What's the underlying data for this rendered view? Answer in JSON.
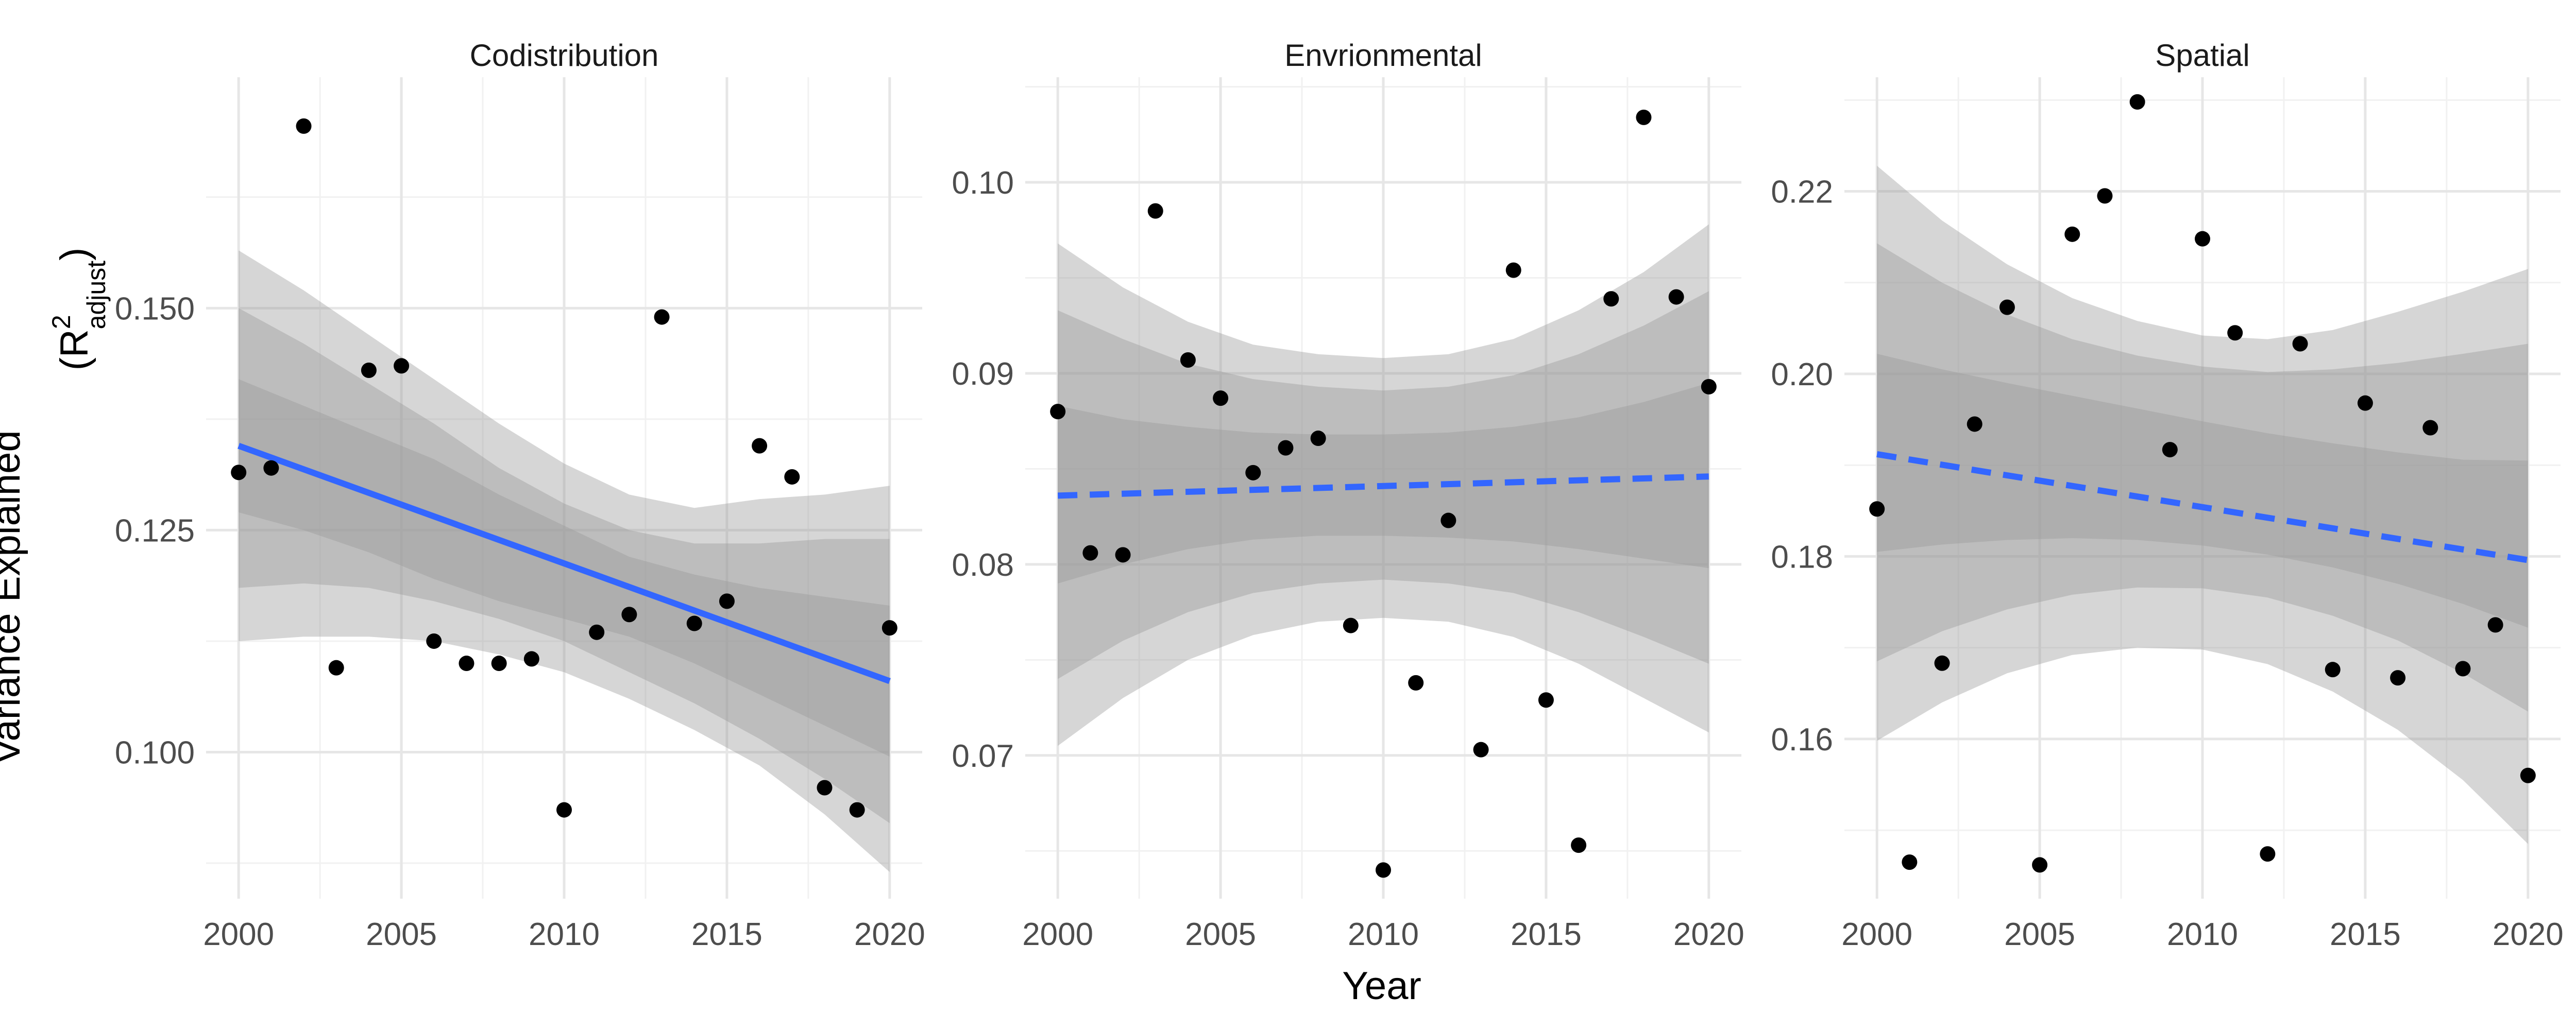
{
  "chart_data": {
    "type": "scatter",
    "xlabel": "Year",
    "ylabel": {
      "main": "Variance Explained",
      "r": "(R",
      "sup": "2",
      "sub": "adjust",
      "close": ")"
    },
    "colors": {
      "points": "#000000",
      "trend": "#3366ff",
      "band": "#999999"
    },
    "grid": true,
    "panels": [
      {
        "title": "Codistribution",
        "xlim": [
          1999,
          2021
        ],
        "ylim": [
          0.0835,
          0.176
        ],
        "x_ticks": [
          2000,
          2005,
          2010,
          2015,
          2020
        ],
        "y_ticks": [
          0.1,
          0.125,
          0.15
        ],
        "y_tick_labels": [
          "0.100",
          "0.125",
          "0.150"
        ],
        "trend": {
          "style": "solid",
          "x": [
            2000,
            2020
          ],
          "y": [
            0.1345,
            0.108
          ]
        },
        "bands": [
          {
            "x": [
              2000,
              2002,
              2004,
              2006,
              2008,
              2010,
              2012,
              2014,
              2016,
              2018,
              2020
            ],
            "lower": [
              0.1125,
              0.113,
              0.113,
              0.1125,
              0.111,
              0.109,
              0.106,
              0.1025,
              0.0985,
              0.093,
              0.0865
            ],
            "upper": [
              0.1565,
              0.152,
              0.147,
              0.142,
              0.137,
              0.1325,
              0.129,
              0.1275,
              0.1285,
              0.129,
              0.13
            ]
          },
          {
            "x": [
              2000,
              2002,
              2004,
              2006,
              2008,
              2010,
              2012,
              2014,
              2016,
              2018,
              2020
            ],
            "lower": [
              0.1185,
              0.119,
              0.1185,
              0.117,
              0.115,
              0.1125,
              0.109,
              0.1055,
              0.1015,
              0.097,
              0.092
            ],
            "upper": [
              0.15,
              0.146,
              0.1415,
              0.137,
              0.132,
              0.128,
              0.125,
              0.1235,
              0.1235,
              0.124,
              0.124
            ]
          },
          {
            "x": [
              2000,
              2002,
              2004,
              2006,
              2008,
              2010,
              2012,
              2014,
              2016,
              2018,
              2020
            ],
            "lower": [
              0.127,
              0.125,
              0.1225,
              0.1195,
              0.117,
              0.115,
              0.113,
              0.11,
              0.1065,
              0.103,
              0.0995
            ],
            "upper": [
              0.142,
              0.139,
              0.136,
              0.133,
              0.129,
              0.1255,
              0.122,
              0.12,
              0.1185,
              0.1175,
              0.1165
            ]
          }
        ],
        "points": [
          {
            "x": 2000,
            "y": 0.1315
          },
          {
            "x": 2001,
            "y": 0.132
          },
          {
            "x": 2002,
            "y": 0.1705
          },
          {
            "x": 2003,
            "y": 0.1095
          },
          {
            "x": 2004,
            "y": 0.143
          },
          {
            "x": 2005,
            "y": 0.1435
          },
          {
            "x": 2006,
            "y": 0.1125
          },
          {
            "x": 2007,
            "y": 0.11
          },
          {
            "x": 2008,
            "y": 0.11
          },
          {
            "x": 2009,
            "y": 0.1105
          },
          {
            "x": 2010,
            "y": 0.0935
          },
          {
            "x": 2011,
            "y": 0.1135
          },
          {
            "x": 2012,
            "y": 0.1155
          },
          {
            "x": 2013,
            "y": 0.149
          },
          {
            "x": 2014,
            "y": 0.1145
          },
          {
            "x": 2015,
            "y": 0.117
          },
          {
            "x": 2016,
            "y": 0.1345
          },
          {
            "x": 2017,
            "y": 0.131
          },
          {
            "x": 2018,
            "y": 0.096
          },
          {
            "x": 2019,
            "y": 0.0935
          },
          {
            "x": 2020,
            "y": 0.114
          }
        ]
      },
      {
        "title": "Envrionmental",
        "xlim": [
          1999,
          2021
        ],
        "ylim": [
          0.0625,
          0.1055
        ],
        "x_ticks": [
          2000,
          2005,
          2010,
          2015,
          2020
        ],
        "y_ticks": [
          0.07,
          0.08,
          0.09,
          0.1
        ],
        "y_tick_labels": [
          "0.07",
          "0.08",
          "0.09",
          "0.10"
        ],
        "trend": {
          "style": "dashed",
          "x": [
            2000,
            2020
          ],
          "y": [
            0.0836,
            0.0846
          ]
        },
        "bands": [
          {
            "x": [
              2000,
              2002,
              2004,
              2006,
              2008,
              2010,
              2012,
              2014,
              2016,
              2018,
              2020
            ],
            "lower": [
              0.0705,
              0.073,
              0.075,
              0.0763,
              0.077,
              0.0772,
              0.077,
              0.0762,
              0.0748,
              0.073,
              0.0712
            ],
            "upper": [
              0.0968,
              0.0945,
              0.0927,
              0.0915,
              0.091,
              0.0908,
              0.091,
              0.0918,
              0.0933,
              0.0953,
              0.0978
            ]
          },
          {
            "x": [
              2000,
              2002,
              2004,
              2006,
              2008,
              2010,
              2012,
              2014,
              2016,
              2018,
              2020
            ],
            "lower": [
              0.074,
              0.076,
              0.0775,
              0.0785,
              0.079,
              0.0792,
              0.079,
              0.0785,
              0.0775,
              0.0762,
              0.0748
            ],
            "upper": [
              0.0933,
              0.0918,
              0.0905,
              0.0897,
              0.0893,
              0.0891,
              0.0893,
              0.0899,
              0.091,
              0.0925,
              0.0943
            ]
          },
          {
            "x": [
              2000,
              2002,
              2004,
              2006,
              2008,
              2010,
              2012,
              2014,
              2016,
              2018,
              2020
            ],
            "lower": [
              0.079,
              0.08,
              0.0808,
              0.0813,
              0.0815,
              0.0815,
              0.0814,
              0.0812,
              0.0808,
              0.0803,
              0.0798
            ],
            "upper": [
              0.0883,
              0.0876,
              0.0872,
              0.0869,
              0.0868,
              0.0868,
              0.0869,
              0.0872,
              0.0877,
              0.0885,
              0.0895
            ]
          }
        ],
        "points": [
          {
            "x": 2000,
            "y": 0.088
          },
          {
            "x": 2001,
            "y": 0.0806
          },
          {
            "x": 2002,
            "y": 0.0805
          },
          {
            "x": 2003,
            "y": 0.0985
          },
          {
            "x": 2004,
            "y": 0.0907
          },
          {
            "x": 2005,
            "y": 0.0887
          },
          {
            "x": 2006,
            "y": 0.0848
          },
          {
            "x": 2007,
            "y": 0.0861
          },
          {
            "x": 2008,
            "y": 0.0866
          },
          {
            "x": 2009,
            "y": 0.0768
          },
          {
            "x": 2010,
            "y": 0.064
          },
          {
            "x": 2011,
            "y": 0.0738
          },
          {
            "x": 2012,
            "y": 0.0823
          },
          {
            "x": 2013,
            "y": 0.0703
          },
          {
            "x": 2014,
            "y": 0.0954
          },
          {
            "x": 2015,
            "y": 0.0729
          },
          {
            "x": 2016,
            "y": 0.0653
          },
          {
            "x": 2017,
            "y": 0.0939
          },
          {
            "x": 2018,
            "y": 0.1034
          },
          {
            "x": 2019,
            "y": 0.094
          },
          {
            "x": 2020,
            "y": 0.0893
          }
        ]
      },
      {
        "title": "Spatial",
        "xlim": [
          1999,
          2021
        ],
        "ylim": [
          0.1425,
          0.2325
        ],
        "x_ticks": [
          2000,
          2005,
          2010,
          2015,
          2020
        ],
        "y_ticks": [
          0.16,
          0.18,
          0.2,
          0.22
        ],
        "y_tick_labels": [
          "0.16",
          "0.18",
          "0.20",
          "0.22"
        ],
        "trend": {
          "style": "dashed",
          "x": [
            2000,
            2020
          ],
          "y": [
            0.1912,
            0.1796
          ]
        },
        "bands": [
          {
            "x": [
              2000,
              2002,
              2004,
              2006,
              2008,
              2010,
              2012,
              2014,
              2016,
              2018,
              2020
            ],
            "lower": [
              0.1598,
              0.164,
              0.1672,
              0.1692,
              0.17,
              0.1698,
              0.1682,
              0.1652,
              0.161,
              0.1555,
              0.1485
            ],
            "upper": [
              0.2228,
              0.2168,
              0.212,
              0.2083,
              0.2058,
              0.2042,
              0.2038,
              0.2048,
              0.2068,
              0.209,
              0.2115
            ]
          },
          {
            "x": [
              2000,
              2002,
              2004,
              2006,
              2008,
              2010,
              2012,
              2014,
              2016,
              2018,
              2020
            ],
            "lower": [
              0.1685,
              0.1718,
              0.1742,
              0.1758,
              0.1766,
              0.1765,
              0.1755,
              0.1735,
              0.1708,
              0.1672,
              0.163
            ],
            "upper": [
              0.2143,
              0.21,
              0.2065,
              0.2038,
              0.202,
              0.2008,
              0.2002,
              0.2005,
              0.2012,
              0.2022,
              0.2033
            ]
          },
          {
            "x": [
              2000,
              2002,
              2004,
              2006,
              2008,
              2010,
              2012,
              2014,
              2016,
              2018,
              2020
            ],
            "lower": [
              0.1805,
              0.1813,
              0.1818,
              0.182,
              0.1818,
              0.1812,
              0.1802,
              0.1788,
              0.177,
              0.1748,
              0.1722
            ],
            "upper": [
              0.2022,
              0.2005,
              0.199,
              0.1976,
              0.1962,
              0.1948,
              0.1935,
              0.1924,
              0.1914,
              0.1906,
              0.1905
            ]
          }
        ],
        "points": [
          {
            "x": 2000,
            "y": 0.1852
          },
          {
            "x": 2001,
            "y": 0.1465
          },
          {
            "x": 2002,
            "y": 0.1683
          },
          {
            "x": 2003,
            "y": 0.1945
          },
          {
            "x": 2004,
            "y": 0.2073
          },
          {
            "x": 2005,
            "y": 0.1462
          },
          {
            "x": 2006,
            "y": 0.2153
          },
          {
            "x": 2007,
            "y": 0.2195
          },
          {
            "x": 2008,
            "y": 0.2298
          },
          {
            "x": 2009,
            "y": 0.1917
          },
          {
            "x": 2010,
            "y": 0.2148
          },
          {
            "x": 2011,
            "y": 0.2045
          },
          {
            "x": 2012,
            "y": 0.1474
          },
          {
            "x": 2013,
            "y": 0.2033
          },
          {
            "x": 2014,
            "y": 0.1676
          },
          {
            "x": 2015,
            "y": 0.1968
          },
          {
            "x": 2016,
            "y": 0.1667
          },
          {
            "x": 2017,
            "y": 0.1941
          },
          {
            "x": 2018,
            "y": 0.1677
          },
          {
            "x": 2019,
            "y": 0.1725
          },
          {
            "x": 2020,
            "y": 0.156
          }
        ]
      }
    ]
  }
}
